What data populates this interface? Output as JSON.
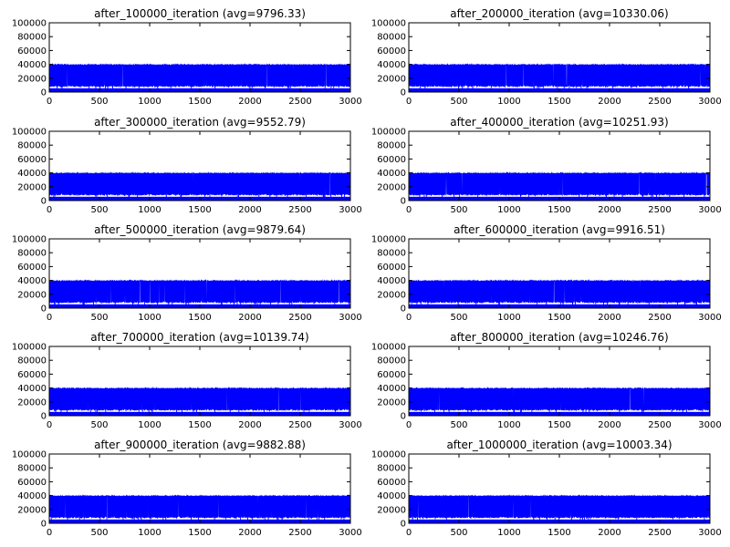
{
  "chart_data": [
    {
      "type": "line",
      "title": "after_100000_iteration (avg=9796.33)",
      "xlim": [
        0,
        3000
      ],
      "ylim": [
        0,
        100000
      ],
      "xticks": [
        "0",
        "500",
        "1000",
        "1500",
        "2000",
        "2500",
        "3000"
      ],
      "yticks": [
        "0",
        "20000",
        "40000",
        "60000",
        "80000",
        "100000"
      ],
      "series": [
        {
          "color": "#0000ff",
          "description": "oscillating between ~10000 and ~40000 across all 3000 steps",
          "min": 10000,
          "max": 40000
        }
      ]
    },
    {
      "type": "line",
      "title": "after_200000_iteration (avg=10330.06)",
      "xlim": [
        0,
        3000
      ],
      "ylim": [
        0,
        100000
      ],
      "xticks": [
        "0",
        "500",
        "1000",
        "1500",
        "2000",
        "2500",
        "3000"
      ],
      "yticks": [
        "0",
        "20000",
        "40000",
        "60000",
        "80000",
        "100000"
      ],
      "series": [
        {
          "color": "#0000ff",
          "min": 10000,
          "max": 40000
        }
      ]
    },
    {
      "type": "line",
      "title": "after_300000_iteration (avg=9552.79)",
      "xlim": [
        0,
        3000
      ],
      "ylim": [
        0,
        100000
      ],
      "xticks": [
        "0",
        "500",
        "1000",
        "1500",
        "2000",
        "2500",
        "3000"
      ],
      "yticks": [
        "0",
        "20000",
        "40000",
        "60000",
        "80000",
        "100000"
      ],
      "series": [
        {
          "color": "#0000ff",
          "min": 10000,
          "max": 40000
        }
      ]
    },
    {
      "type": "line",
      "title": "after_400000_iteration (avg=10251.93)",
      "xlim": [
        0,
        3000
      ],
      "ylim": [
        0,
        100000
      ],
      "xticks": [
        "0",
        "500",
        "1000",
        "1500",
        "2000",
        "2500",
        "3000"
      ],
      "yticks": [
        "0",
        "20000",
        "40000",
        "60000",
        "80000",
        "100000"
      ],
      "series": [
        {
          "color": "#0000ff",
          "min": 10000,
          "max": 40000
        }
      ]
    },
    {
      "type": "line",
      "title": "after_500000_iteration (avg=9879.64)",
      "xlim": [
        0,
        3000
      ],
      "ylim": [
        0,
        100000
      ],
      "xticks": [
        "0",
        "500",
        "1000",
        "1500",
        "2000",
        "2500",
        "3000"
      ],
      "yticks": [
        "0",
        "20000",
        "40000",
        "60000",
        "80000",
        "100000"
      ],
      "series": [
        {
          "color": "#0000ff",
          "min": 10000,
          "max": 40000
        }
      ]
    },
    {
      "type": "line",
      "title": "after_600000_iteration (avg=9916.51)",
      "xlim": [
        0,
        3000
      ],
      "ylim": [
        0,
        100000
      ],
      "xticks": [
        "0",
        "500",
        "1000",
        "1500",
        "2000",
        "2500",
        "3000"
      ],
      "yticks": [
        "0",
        "20000",
        "40000",
        "60000",
        "80000",
        "100000"
      ],
      "series": [
        {
          "color": "#0000ff",
          "min": 10000,
          "max": 40000
        }
      ]
    },
    {
      "type": "line",
      "title": "after_700000_iteration (avg=10139.74)",
      "xlim": [
        0,
        3000
      ],
      "ylim": [
        0,
        100000
      ],
      "xticks": [
        "0",
        "500",
        "1000",
        "1500",
        "2000",
        "2500",
        "3000"
      ],
      "yticks": [
        "0",
        "20000",
        "40000",
        "60000",
        "80000",
        "100000"
      ],
      "series": [
        {
          "color": "#0000ff",
          "min": 10000,
          "max": 40000
        }
      ]
    },
    {
      "type": "line",
      "title": "after_800000_iteration (avg=10246.76)",
      "xlim": [
        0,
        3000
      ],
      "ylim": [
        0,
        100000
      ],
      "xticks": [
        "0",
        "500",
        "1000",
        "1500",
        "2000",
        "2500",
        "3000"
      ],
      "yticks": [
        "0",
        "20000",
        "40000",
        "60000",
        "80000",
        "100000"
      ],
      "series": [
        {
          "color": "#0000ff",
          "min": 10000,
          "max": 40000
        }
      ]
    },
    {
      "type": "line",
      "title": "after_900000_iteration (avg=9882.88)",
      "xlim": [
        0,
        3000
      ],
      "ylim": [
        0,
        100000
      ],
      "xticks": [
        "0",
        "500",
        "1000",
        "1500",
        "2000",
        "2500",
        "3000"
      ],
      "yticks": [
        "0",
        "20000",
        "40000",
        "60000",
        "80000",
        "100000"
      ],
      "series": [
        {
          "color": "#0000ff",
          "min": 10000,
          "max": 40000
        }
      ]
    },
    {
      "type": "line",
      "title": "after_1000000_iteration (avg=10003.34)",
      "xlim": [
        0,
        3000
      ],
      "ylim": [
        0,
        100000
      ],
      "xticks": [
        "0",
        "500",
        "1000",
        "1500",
        "2000",
        "2500",
        "3000"
      ],
      "yticks": [
        "0",
        "20000",
        "40000",
        "60000",
        "80000",
        "100000"
      ],
      "series": [
        {
          "color": "#0000ff",
          "min": 10000,
          "max": 40000
        }
      ]
    }
  ],
  "layout": {
    "rows": 5,
    "cols": 2
  }
}
